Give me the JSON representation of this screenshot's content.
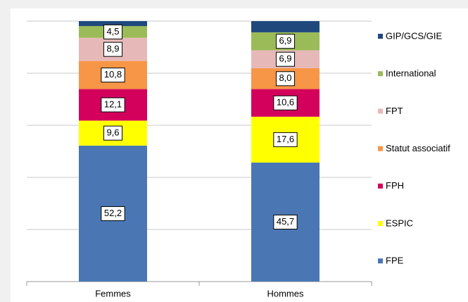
{
  "chart_data": {
    "type": "bar",
    "stacked": true,
    "categories": [
      "Femmes",
      "Hommes"
    ],
    "series": [
      {
        "name": "FPE",
        "color": "#4a77b4",
        "values": [
          52.2,
          45.7
        ],
        "value_labels": [
          "52,2",
          "45,7"
        ]
      },
      {
        "name": "ESPIC",
        "color": "#ffff00",
        "values": [
          9.6,
          17.6
        ],
        "value_labels": [
          "9,6",
          "17,6"
        ]
      },
      {
        "name": "FPH",
        "color": "#d3005c",
        "values": [
          12.1,
          10.6
        ],
        "value_labels": [
          "12,1",
          "10,6"
        ]
      },
      {
        "name": "Statut associatif",
        "color": "#f79646",
        "values": [
          10.8,
          8.0
        ],
        "value_labels": [
          "10,8",
          "8,0"
        ]
      },
      {
        "name": "FPT",
        "color": "#e6b9b8",
        "values": [
          8.9,
          6.9
        ],
        "value_labels": [
          "8,9",
          "6,9"
        ]
      },
      {
        "name": "International",
        "color": "#9bbb59",
        "values": [
          4.5,
          6.9
        ],
        "value_labels": [
          "4,5",
          "6,9"
        ]
      },
      {
        "name": "GIP/GCS/GIE",
        "color": "#1f497d",
        "values": [
          1.9,
          4.3
        ]
      }
    ],
    "ylim": [
      0,
      100
    ],
    "yticks": [
      0,
      20,
      40,
      60,
      80,
      100
    ],
    "grid": true,
    "legend": "right"
  }
}
